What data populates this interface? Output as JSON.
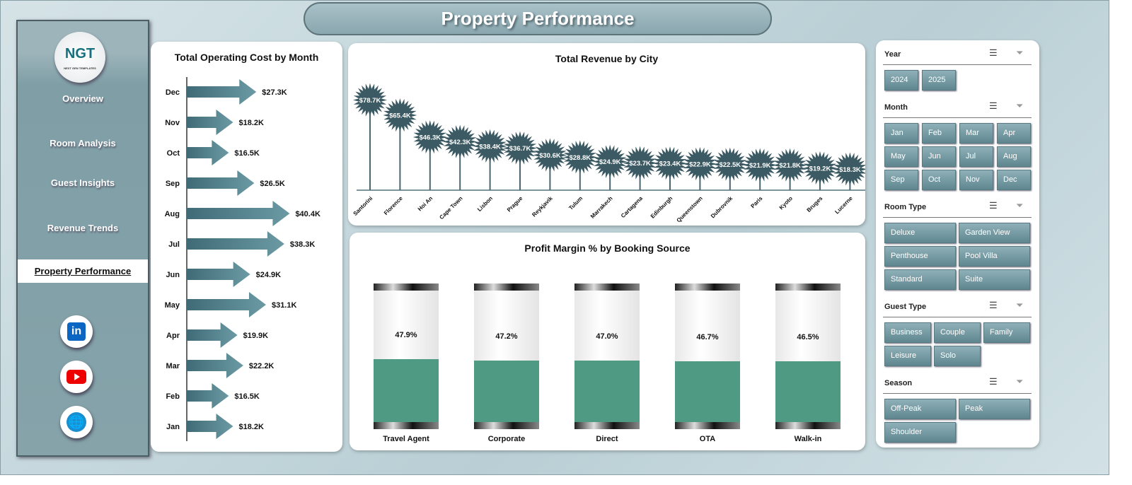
{
  "title": "Property Performance",
  "logo": {
    "text": "NGT",
    "sub": "NEXT GEN TEMPLATES"
  },
  "nav": [
    "Overview",
    "Room Analysis",
    "Guest Insights",
    "Revenue Trends",
    "Property Performance"
  ],
  "active_nav": 4,
  "social": [
    "linkedin-icon",
    "youtube-icon",
    "globe-icon"
  ],
  "cost_chart": {
    "title": "Total Operating Cost by Month",
    "type": "bar",
    "categories": [
      "Dec",
      "Nov",
      "Oct",
      "Sep",
      "Aug",
      "Jul",
      "Jun",
      "May",
      "Apr",
      "Mar",
      "Feb",
      "Jan"
    ],
    "values": [
      27.3,
      18.2,
      16.5,
      26.5,
      40.4,
      38.3,
      24.9,
      31.1,
      19.9,
      22.2,
      16.5,
      18.2
    ],
    "labels": [
      "$27.3K",
      "$18.2K",
      "$16.5K",
      "$26.5K",
      "$40.4K",
      "$38.3K",
      "$24.9K",
      "$31.1K",
      "$19.9K",
      "$22.2K",
      "$16.5K",
      "$18.2K"
    ]
  },
  "revenue_chart": {
    "title": "Total Revenue  by City",
    "type": "lollipop",
    "categories": [
      "Santorini",
      "Florence",
      "Hoi An",
      "Cape Town",
      "Lisbon",
      "Prague",
      "Reykjavik",
      "Tulum",
      "Marrakech",
      "Cartagena",
      "Edinburgh",
      "Queenstown",
      "Dubrovnik",
      "Paris",
      "Kyoto",
      "Bruges",
      "Lucerne"
    ],
    "values": [
      78.7,
      65.4,
      46.3,
      42.3,
      38.4,
      36.7,
      30.6,
      28.8,
      24.9,
      23.7,
      23.4,
      22.9,
      22.5,
      21.9,
      21.8,
      19.2,
      18.3
    ],
    "labels": [
      "$78.7K",
      "$65.4K",
      "$46.3K",
      "$42.3K",
      "$38.4K",
      "$36.7K",
      "$30.6K",
      "$28.8K",
      "$24.9K",
      "$23.7K",
      "$23.4K",
      "$22.9K",
      "$22.5K",
      "$21.9K",
      "$21.8K",
      "$19.2K",
      "$18.3K"
    ]
  },
  "profit_chart": {
    "title": "Profit Margin % by Booking Source",
    "type": "bar",
    "categories": [
      "Travel Agent",
      "Corporate",
      "Direct",
      "OTA",
      "Walk-in"
    ],
    "values": [
      47.9,
      47.2,
      47.0,
      46.7,
      46.5
    ],
    "labels": [
      "47.9%",
      "47.2%",
      "47.0%",
      "46.7%",
      "46.5%"
    ],
    "fill_color": "#4e9a82"
  },
  "slicers": [
    {
      "title": "Year",
      "items": [
        "2024",
        "2025"
      ],
      "cols": 4
    },
    {
      "title": "Month",
      "items": [
        "Jan",
        "Feb",
        "Mar",
        "Apr",
        "May",
        "Jun",
        "Jul",
        "Aug",
        "Sep",
        "Oct",
        "Nov",
        "Dec"
      ],
      "cols": 4
    },
    {
      "title": "Room Type",
      "items": [
        "Deluxe",
        "Garden View",
        "Penthouse",
        "Pool Villa",
        "Standard",
        "Suite"
      ],
      "cols": 2
    },
    {
      "title": "Guest Type",
      "items": [
        "Business",
        "Couple",
        "Family",
        "Leisure",
        "Solo"
      ],
      "cols": 3
    },
    {
      "title": "Season",
      "items": [
        "Off-Peak",
        "Peak",
        "Shoulder"
      ],
      "cols": 2
    }
  ],
  "colors": {
    "accent": "#3f6470",
    "arrow": "#4e7d88"
  }
}
